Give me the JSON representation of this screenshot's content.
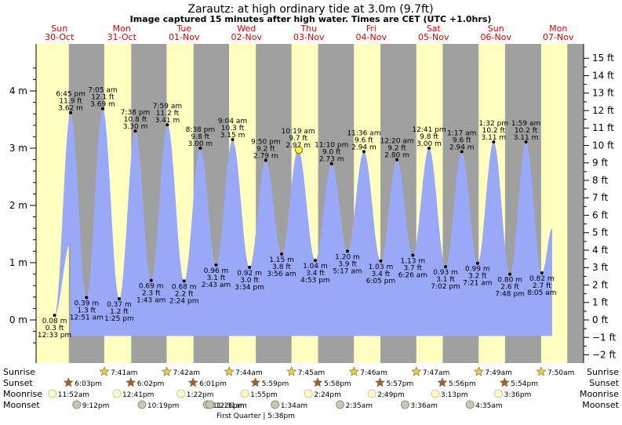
{
  "title": "Zarautz: at high  ordinary tide at 3.0m (9.7ft)",
  "subtitle": "Image captured 15 minutes after high water. Times are CET (UTC +1.0hrs)",
  "colors": {
    "tide_fill": "#9aa8f8",
    "day_bg": "#ffffc0",
    "night_bg": "#a0a0a0",
    "day_label": "#e00000",
    "sun_star": "#e8d040",
    "sunset_star": "#a06030",
    "moon_circle": "#ffffd0",
    "moonset_circle": "#c8c8b0"
  },
  "days": [
    {
      "dow": "Sun",
      "date": "30-Oct"
    },
    {
      "dow": "Mon",
      "date": "31-Oct"
    },
    {
      "dow": "Tue",
      "date": "01-Nov"
    },
    {
      "dow": "Wed",
      "date": "02-Nov"
    },
    {
      "dow": "Thu",
      "date": "03-Nov"
    },
    {
      "dow": "Fri",
      "date": "04-Nov"
    },
    {
      "dow": "Sat",
      "date": "05-Nov"
    },
    {
      "dow": "Sun",
      "date": "06-Nov"
    },
    {
      "dow": "Mon",
      "date": "07-Nov"
    }
  ],
  "row_labels": {
    "sunrise": "Sunrise",
    "sunset": "Sunset",
    "moonrise": "Moonrise",
    "moonset": "Moonset"
  },
  "sunrise": [
    "7:41am",
    "7:42am",
    "7:44am",
    "7:45am",
    "7:46am",
    "7:47am",
    "7:49am",
    "7:50am"
  ],
  "sunset": [
    "6:03pm",
    "6:02pm",
    "6:01pm",
    "5:59pm",
    "5:58pm",
    "5:57pm",
    "5:56pm",
    "5:54pm"
  ],
  "moonrise": [
    "11:52am",
    "12:41pm",
    "1:22pm",
    "1:55pm",
    "2:24pm",
    "2:49pm",
    "3:13pm",
    "3:36pm"
  ],
  "moonset": [
    "9:12pm",
    "10:19pm",
    "11:26pm",
    "12:31am",
    "1:34am",
    "2:35am",
    "3:36am",
    "4:35am"
  ],
  "moon_phase_note": "First Quarter | 5:38pm",
  "chart_data": {
    "type": "area",
    "title": "Zarautz: at high  ordinary tide at 3.0m (9.7ft)",
    "ylabel_left": "m",
    "ylabel_right": "ft",
    "ylim_m": [
      -0.5,
      4.5
    ],
    "yticks_m": [
      "0 m",
      "1 m",
      "2 m",
      "3 m",
      "4 m"
    ],
    "yticks_ft": [
      "−2 ft",
      "−1 ft",
      "0 ft",
      "1 ft",
      "2 ft",
      "3 ft",
      "4 ft",
      "5 ft",
      "6 ft",
      "7 ft",
      "8 ft",
      "9 ft",
      "10 ft",
      "11 ft",
      "12 ft",
      "13 ft",
      "14 ft",
      "15 ft"
    ],
    "x_range": [
      "30-Oct 12:00am",
      "07-Nov 12:00pm"
    ],
    "nights": [
      [
        "30-Oct 18:03",
        "31-Oct 07:40"
      ],
      [
        "31-Oct 18:03",
        "01-Nov 07:41"
      ],
      [
        "01-Nov 18:02",
        "02-Nov 07:42"
      ],
      [
        "02-Nov 18:01",
        "03-Nov 07:44"
      ],
      [
        "03-Nov 17:59",
        "04-Nov 07:45"
      ],
      [
        "04-Nov 17:58",
        "05-Nov 07:46"
      ],
      [
        "05-Nov 17:57",
        "06-Nov 07:47"
      ],
      [
        "06-Nov 17:56",
        "07-Nov 07:49"
      ],
      [
        "07-Nov 17:54",
        "07-Nov 23:59"
      ]
    ],
    "tides": [
      {
        "time": "12:33 pm",
        "ft": "0.3 ft",
        "m": "0.08 m",
        "type": "low",
        "datetime": "30-Oct 12:33"
      },
      {
        "time": "6:45 pm",
        "ft": "11.9 ft",
        "m": "3.62 m",
        "type": "high",
        "datetime": "30-Oct 18:45"
      },
      {
        "time": "12:51 am",
        "ft": "1.3 ft",
        "m": "0.39 m",
        "type": "low",
        "datetime": "31-Oct 00:51"
      },
      {
        "time": "7:05 am",
        "ft": "12.1 ft",
        "m": "3.69 m",
        "type": "high",
        "datetime": "31-Oct 07:05"
      },
      {
        "time": "1:25 pm",
        "ft": "1.2 ft",
        "m": "0.37 m",
        "type": "low",
        "datetime": "31-Oct 13:25"
      },
      {
        "time": "7:38 pm",
        "ft": "10.8 ft",
        "m": "3.30 m",
        "type": "high",
        "datetime": "31-Oct 19:38"
      },
      {
        "time": "1:43 am",
        "ft": "2.3 ft",
        "m": "0.69 m",
        "type": "low",
        "datetime": "01-Nov 01:43"
      },
      {
        "time": "7:59 am",
        "ft": "11.2 ft",
        "m": "3.41 m",
        "type": "high",
        "datetime": "01-Nov 07:59"
      },
      {
        "time": "2:24 pm",
        "ft": "2.2 ft",
        "m": "0.68 m",
        "type": "low",
        "datetime": "01-Nov 14:24"
      },
      {
        "time": "8:38 pm",
        "ft": "9.8 ft",
        "m": "3.00 m",
        "type": "high",
        "datetime": "01-Nov 20:38"
      },
      {
        "time": "2:43 am",
        "ft": "3.1 ft",
        "m": "0.96 m",
        "type": "low",
        "datetime": "02-Nov 02:43"
      },
      {
        "time": "9:04 am",
        "ft": "10.3 ft",
        "m": "3.15 m",
        "type": "high",
        "datetime": "02-Nov 09:04"
      },
      {
        "time": "3:34 pm",
        "ft": "3.0 ft",
        "m": "0.92 m",
        "type": "low",
        "datetime": "02-Nov 15:34"
      },
      {
        "time": "9:50 pm",
        "ft": "9.2 ft",
        "m": "2.79 m",
        "type": "high",
        "datetime": "02-Nov 21:50"
      },
      {
        "time": "3:56 am",
        "ft": "3.8 ft",
        "m": "1.15 m",
        "type": "low",
        "datetime": "03-Nov 03:56"
      },
      {
        "time": "10:19 am",
        "ft": "9.7 ft",
        "m": "2.97 m",
        "type": "high",
        "datetime": "03-Nov 10:19"
      },
      {
        "time": "4:53 pm",
        "ft": "3.4 ft",
        "m": "1.04 m",
        "type": "low",
        "datetime": "03-Nov 16:53"
      },
      {
        "time": "11:10 pm",
        "ft": "9.0 ft",
        "m": "2.73 m",
        "type": "high",
        "datetime": "03-Nov 23:10"
      },
      {
        "time": "5:17 am",
        "ft": "3.9 ft",
        "m": "1.20 m",
        "type": "low",
        "datetime": "04-Nov 05:17"
      },
      {
        "time": "11:36 am",
        "ft": "9.6 ft",
        "m": "2.94 m",
        "type": "high",
        "datetime": "04-Nov 11:36"
      },
      {
        "time": "6:05 pm",
        "ft": "3.4 ft",
        "m": "1.03 m",
        "type": "low",
        "datetime": "04-Nov 18:05"
      },
      {
        "time": "12:20 am",
        "ft": "9.2 ft",
        "m": "2.80 m",
        "type": "high",
        "datetime": "05-Nov 00:20"
      },
      {
        "time": "6:26 am",
        "ft": "3.7 ft",
        "m": "1.13 m",
        "type": "low",
        "datetime": "05-Nov 06:26"
      },
      {
        "time": "12:41 pm",
        "ft": "9.8 ft",
        "m": "3.00 m",
        "type": "high",
        "datetime": "05-Nov 12:41"
      },
      {
        "time": "7:02 pm",
        "ft": "3.1 ft",
        "m": "0.93 m",
        "type": "low",
        "datetime": "05-Nov 19:02"
      },
      {
        "time": "1:17 am",
        "ft": "9.6 ft",
        "m": "2.94 m",
        "type": "high",
        "datetime": "06-Nov 01:17"
      },
      {
        "time": "7:21 am",
        "ft": "3.2 ft",
        "m": "0.99 m",
        "type": "low",
        "datetime": "06-Nov 07:21"
      },
      {
        "time": "1:32 pm",
        "ft": "10.2 ft",
        "m": "3.11 m",
        "type": "high",
        "datetime": "06-Nov 13:32"
      },
      {
        "time": "7:48 pm",
        "ft": "2.6 ft",
        "m": "0.80 m",
        "type": "low",
        "datetime": "06-Nov 19:48"
      },
      {
        "time": "1:59 am",
        "ft": "10.2 ft",
        "m": "3.11 m",
        "type": "high",
        "datetime": "07-Nov 01:59"
      },
      {
        "time": "8:05 am",
        "ft": "2.7 ft",
        "m": "0.82 m",
        "type": "low",
        "datetime": "07-Nov 08:05"
      }
    ],
    "current_marker": {
      "datetime": "03-Nov 10:34",
      "m": 2.97
    }
  }
}
